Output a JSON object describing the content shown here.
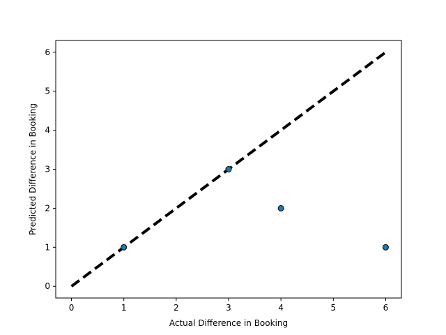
{
  "chart_data": {
    "type": "scatter",
    "title": "",
    "xlabel": "Actual Difference in Booking",
    "ylabel": "Predicted Difference in Booking",
    "xlim": [
      -0.3,
      6.3
    ],
    "ylim": [
      -0.3,
      6.3
    ],
    "x_ticks": [
      0,
      1,
      2,
      3,
      4,
      5,
      6
    ],
    "y_ticks": [
      0,
      1,
      2,
      3,
      4,
      5,
      6
    ],
    "grid": false,
    "series": [
      {
        "kind": "points",
        "x": [
          1,
          3,
          4,
          6
        ],
        "y": [
          1,
          3,
          2,
          1
        ],
        "color": "#1f77b4",
        "edge_color": "#000000"
      },
      {
        "kind": "reference-line",
        "x": [
          0,
          6
        ],
        "y": [
          0,
          6
        ],
        "color": "#000000",
        "style": "dashed"
      }
    ]
  }
}
